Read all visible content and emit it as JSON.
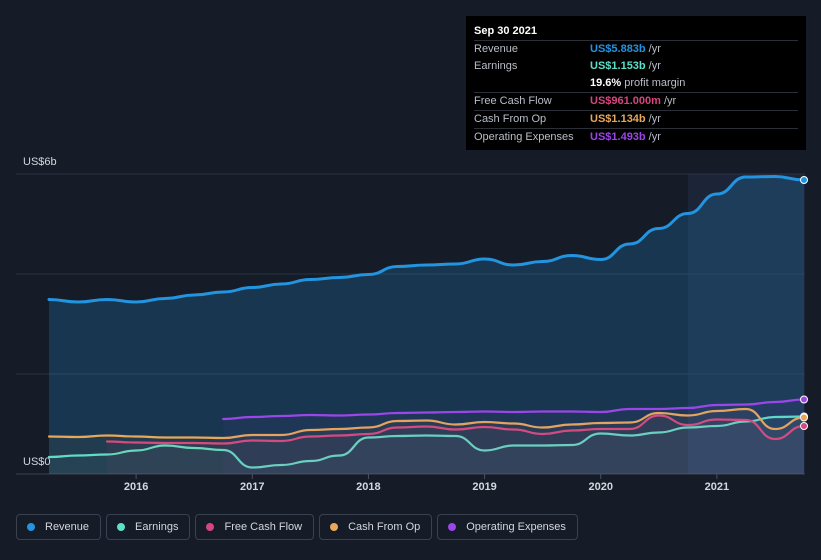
{
  "tooltip": {
    "date": "Sep 30 2021",
    "rows": [
      {
        "label": "Revenue",
        "value": "US$5.883b",
        "unit": "/yr",
        "color": "#2394df"
      },
      {
        "label": "Earnings",
        "value": "US$1.153b",
        "unit": "/yr",
        "color": "#5ce0c8"
      },
      {
        "label": "",
        "value": "19.6%",
        "unit": "profit margin",
        "color": "#ffffff"
      },
      {
        "label": "Free Cash Flow",
        "value": "US$961.000m",
        "unit": "/yr",
        "color": "#d6467e"
      },
      {
        "label": "Cash From Op",
        "value": "US$1.134b",
        "unit": "/yr",
        "color": "#e8a85a"
      },
      {
        "label": "Operating Expenses",
        "value": "US$1.493b",
        "unit": "/yr",
        "color": "#9a46e8"
      }
    ]
  },
  "legend": [
    {
      "label": "Revenue",
      "color": "#2394df"
    },
    {
      "label": "Earnings",
      "color": "#5ce0c8"
    },
    {
      "label": "Free Cash Flow",
      "color": "#d6467e"
    },
    {
      "label": "Cash From Op",
      "color": "#e8a85a"
    },
    {
      "label": "Operating Expenses",
      "color": "#9a46e8"
    }
  ],
  "chart_data": {
    "type": "area",
    "title": "",
    "xlabel": "",
    "ylabel": "",
    "y_top_label": "US$6b",
    "y_bottom_label": "US$0",
    "ylim": [
      0,
      6
    ],
    "xlim": [
      2015.25,
      2021.75
    ],
    "x_ticks": [
      "2016",
      "2017",
      "2018",
      "2019",
      "2020",
      "2021"
    ],
    "x_tick_values": [
      2016,
      2017,
      2018,
      2019,
      2020,
      2021
    ],
    "highlight_start": 2020.75,
    "grid": true,
    "series": [
      {
        "name": "Revenue",
        "color": "#2394df",
        "fill": true,
        "points": [
          [
            2015.25,
            3.49
          ],
          [
            2015.5,
            3.44
          ],
          [
            2015.75,
            3.49
          ],
          [
            2016.0,
            3.44
          ],
          [
            2016.25,
            3.51
          ],
          [
            2016.5,
            3.58
          ],
          [
            2016.75,
            3.64
          ],
          [
            2017.0,
            3.73
          ],
          [
            2017.25,
            3.8
          ],
          [
            2017.5,
            3.89
          ],
          [
            2017.75,
            3.93
          ],
          [
            2018.0,
            3.99
          ],
          [
            2018.25,
            4.15
          ],
          [
            2018.5,
            4.18
          ],
          [
            2018.75,
            4.2
          ],
          [
            2019.0,
            4.3
          ],
          [
            2019.25,
            4.18
          ],
          [
            2019.5,
            4.25
          ],
          [
            2019.75,
            4.37
          ],
          [
            2020.0,
            4.29
          ],
          [
            2020.25,
            4.6
          ],
          [
            2020.5,
            4.91
          ],
          [
            2020.75,
            5.21
          ],
          [
            2021.0,
            5.6
          ],
          [
            2021.25,
            5.94
          ],
          [
            2021.5,
            5.95
          ],
          [
            2021.75,
            5.88
          ]
        ]
      },
      {
        "name": "Earnings",
        "color": "#5ce0c8",
        "fill": false,
        "points": [
          [
            2015.25,
            0.34
          ],
          [
            2015.5,
            0.37
          ],
          [
            2015.75,
            0.39
          ],
          [
            2016.0,
            0.47
          ],
          [
            2016.25,
            0.57
          ],
          [
            2016.5,
            0.52
          ],
          [
            2016.75,
            0.48
          ],
          [
            2017.0,
            0.13
          ],
          [
            2017.25,
            0.18
          ],
          [
            2017.5,
            0.26
          ],
          [
            2017.75,
            0.37
          ],
          [
            2018.0,
            0.73
          ],
          [
            2018.25,
            0.76
          ],
          [
            2018.5,
            0.77
          ],
          [
            2018.75,
            0.76
          ],
          [
            2019.0,
            0.47
          ],
          [
            2019.25,
            0.57
          ],
          [
            2019.5,
            0.57
          ],
          [
            2019.75,
            0.58
          ],
          [
            2020.0,
            0.81
          ],
          [
            2020.25,
            0.77
          ],
          [
            2020.5,
            0.83
          ],
          [
            2020.75,
            0.93
          ],
          [
            2021.0,
            0.96
          ],
          [
            2021.25,
            1.05
          ],
          [
            2021.5,
            1.14
          ],
          [
            2021.75,
            1.15
          ]
        ]
      },
      {
        "name": "Free Cash Flow",
        "color": "#d6467e",
        "fill": false,
        "points": [
          [
            2015.75,
            0.65
          ],
          [
            2016.0,
            0.63
          ],
          [
            2016.25,
            0.62
          ],
          [
            2016.5,
            0.62
          ],
          [
            2016.75,
            0.61
          ],
          [
            2017.0,
            0.67
          ],
          [
            2017.25,
            0.66
          ],
          [
            2017.5,
            0.75
          ],
          [
            2017.75,
            0.77
          ],
          [
            2018.0,
            0.8
          ],
          [
            2018.25,
            0.93
          ],
          [
            2018.5,
            0.95
          ],
          [
            2018.75,
            0.89
          ],
          [
            2019.0,
            0.94
          ],
          [
            2019.25,
            0.89
          ],
          [
            2019.5,
            0.8
          ],
          [
            2019.75,
            0.87
          ],
          [
            2020.0,
            0.9
          ],
          [
            2020.25,
            0.9
          ],
          [
            2020.5,
            1.17
          ],
          [
            2020.75,
            0.98
          ],
          [
            2021.0,
            1.09
          ],
          [
            2021.25,
            1.08
          ],
          [
            2021.5,
            0.7
          ],
          [
            2021.75,
            0.96
          ]
        ]
      },
      {
        "name": "Cash From Op",
        "color": "#e8a85a",
        "fill": false,
        "points": [
          [
            2015.25,
            0.75
          ],
          [
            2015.5,
            0.74
          ],
          [
            2015.75,
            0.77
          ],
          [
            2016.0,
            0.75
          ],
          [
            2016.25,
            0.73
          ],
          [
            2016.5,
            0.73
          ],
          [
            2016.75,
            0.72
          ],
          [
            2017.0,
            0.78
          ],
          [
            2017.25,
            0.78
          ],
          [
            2017.5,
            0.88
          ],
          [
            2017.75,
            0.9
          ],
          [
            2018.0,
            0.93
          ],
          [
            2018.25,
            1.06
          ],
          [
            2018.5,
            1.07
          ],
          [
            2018.75,
            0.99
          ],
          [
            2019.0,
            1.04
          ],
          [
            2019.25,
            1.01
          ],
          [
            2019.5,
            0.93
          ],
          [
            2019.75,
            0.99
          ],
          [
            2020.0,
            1.02
          ],
          [
            2020.25,
            1.03
          ],
          [
            2020.5,
            1.22
          ],
          [
            2020.75,
            1.17
          ],
          [
            2021.0,
            1.26
          ],
          [
            2021.25,
            1.3
          ],
          [
            2021.5,
            0.9
          ],
          [
            2021.75,
            1.13
          ]
        ]
      },
      {
        "name": "Operating Expenses",
        "color": "#9a46e8",
        "fill": false,
        "points": [
          [
            2016.75,
            1.1
          ],
          [
            2017.0,
            1.14
          ],
          [
            2017.25,
            1.16
          ],
          [
            2017.5,
            1.18
          ],
          [
            2017.75,
            1.17
          ],
          [
            2018.0,
            1.19
          ],
          [
            2018.25,
            1.22
          ],
          [
            2018.5,
            1.23
          ],
          [
            2018.75,
            1.24
          ],
          [
            2019.0,
            1.25
          ],
          [
            2019.25,
            1.24
          ],
          [
            2019.5,
            1.25
          ],
          [
            2019.75,
            1.25
          ],
          [
            2020.0,
            1.24
          ],
          [
            2020.25,
            1.3
          ],
          [
            2020.5,
            1.3
          ],
          [
            2020.75,
            1.32
          ],
          [
            2021.0,
            1.38
          ],
          [
            2021.25,
            1.39
          ],
          [
            2021.5,
            1.44
          ],
          [
            2021.75,
            1.49
          ]
        ]
      }
    ]
  }
}
